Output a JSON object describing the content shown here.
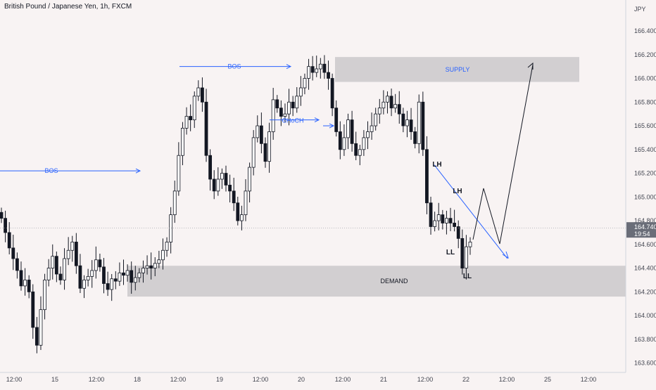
{
  "header": {
    "title": "British Pound / Japanese Yen, 1h, FXCM",
    "currency": "JPY"
  },
  "colors": {
    "background": "#f8f3f3",
    "candle": "#131722",
    "zone": "#d2cfd1",
    "annotation_blue": "#2962ff",
    "axis_text": "#434651",
    "price_label": "#6a6d78"
  },
  "chart_data": {
    "type": "candlestick",
    "y_axis": {
      "unit": "JPY",
      "range": [
        163.54,
        166.67
      ],
      "ticks": [
        "166.400",
        "166.200",
        "166.000",
        "165.800",
        "165.600",
        "165.400",
        "165.200",
        "165.000",
        "164.800",
        "164.600",
        "164.400",
        "164.200",
        "164.000",
        "163.800",
        "163.600"
      ]
    },
    "x_axis": {
      "ticks": [
        "12:00",
        "15",
        "12:00",
        "18",
        "12:00",
        "19",
        "12:00",
        "20",
        "12:00",
        "21",
        "12:00",
        "22",
        "12:00",
        "25",
        "12:00"
      ]
    },
    "current_price": {
      "value": "164.740",
      "countdown": "19:54"
    },
    "price_series": {
      "name": "",
      "approx_closes": [
        164.82,
        164.7,
        164.57,
        164.48,
        164.38,
        164.25,
        164.3,
        164.2,
        163.9,
        163.75,
        164.05,
        164.3,
        164.4,
        164.5,
        164.35,
        164.3,
        164.48,
        164.55,
        164.62,
        164.42,
        164.23,
        164.3,
        164.33,
        164.38,
        164.47,
        164.41,
        164.27,
        164.22,
        164.31,
        164.29,
        164.36,
        164.34,
        164.38,
        164.28,
        164.32,
        164.36,
        164.4,
        164.42,
        164.4,
        164.44,
        164.47,
        164.55,
        164.62,
        164.85,
        165.05,
        165.35,
        165.58,
        165.68,
        165.65,
        165.85,
        165.92,
        165.8,
        165.35,
        165.15,
        165.05,
        165.15,
        165.2,
        165.1,
        165.05,
        164.95,
        164.8,
        164.85,
        165.05,
        165.25,
        165.5,
        165.6,
        165.45,
        165.3,
        165.55,
        165.82,
        165.75,
        165.68,
        165.7,
        165.8,
        165.75,
        165.85,
        165.92,
        166.0,
        166.1,
        166.05,
        166.08,
        166.12,
        166.05,
        166.0,
        165.75,
        165.55,
        165.4,
        165.5,
        165.65,
        165.45,
        165.35,
        165.4,
        165.5,
        165.55,
        165.6,
        165.7,
        165.75,
        165.8,
        165.85,
        165.75,
        165.78,
        165.7,
        165.6,
        165.65,
        165.55,
        165.45,
        165.8,
        165.4,
        164.95,
        164.75,
        164.8,
        164.85,
        164.78,
        164.82,
        164.78,
        164.75,
        164.65,
        164.4,
        164.58,
        164.62
      ]
    },
    "zones": [
      {
        "label": "SUPPLY",
        "from": 165.97,
        "to": 166.18
      },
      {
        "label": "DEMAND",
        "from": 164.16,
        "to": 164.42
      }
    ],
    "annotations": [
      {
        "label": "BOS"
      },
      {
        "label": "BOS"
      },
      {
        "label": "CHoCH"
      },
      {
        "label": "LH"
      },
      {
        "label": "LH"
      },
      {
        "label": "LL"
      },
      {
        "label": "LL"
      }
    ]
  }
}
